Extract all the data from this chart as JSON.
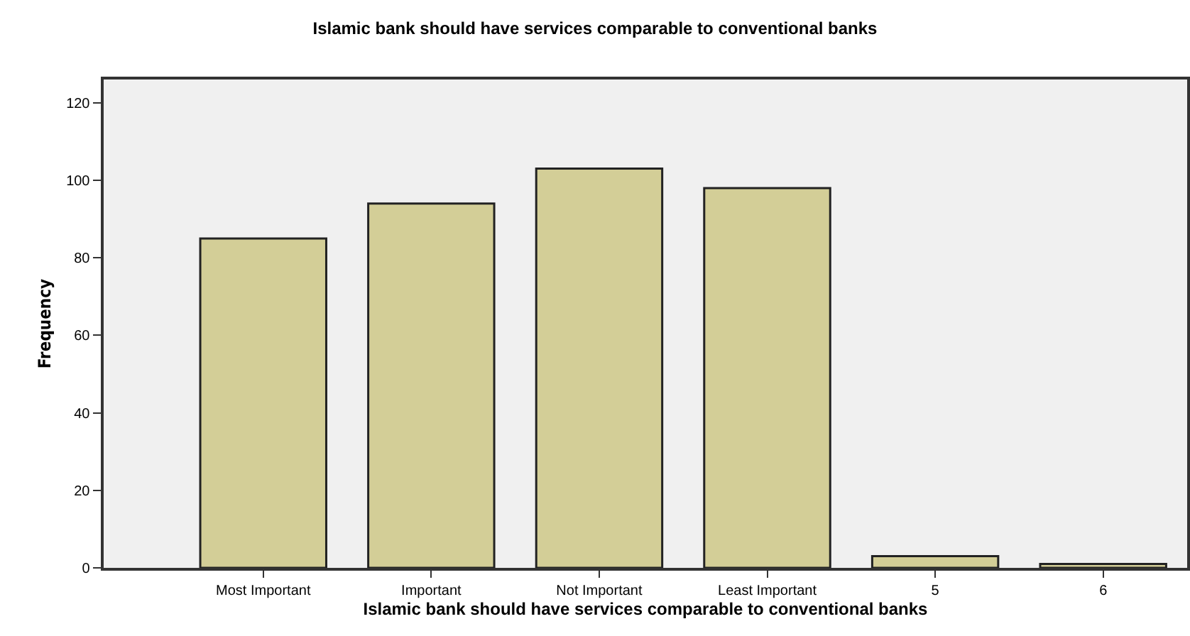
{
  "chart_data": {
    "type": "bar",
    "title": "Islamic bank should have services comparable to conventional banks",
    "xlabel": "Islamic bank should have services comparable to conventional banks",
    "ylabel": "Frequency",
    "categories": [
      "Most Important",
      "Important",
      "Not Important",
      "Least Important",
      "5",
      "6"
    ],
    "values": [
      85,
      94,
      103,
      98,
      3,
      1
    ],
    "color": "#d3ce97",
    "ylim": [
      0,
      126
    ],
    "yticks": [
      0,
      20,
      40,
      60,
      80,
      100,
      120
    ],
    "grid": false
  }
}
